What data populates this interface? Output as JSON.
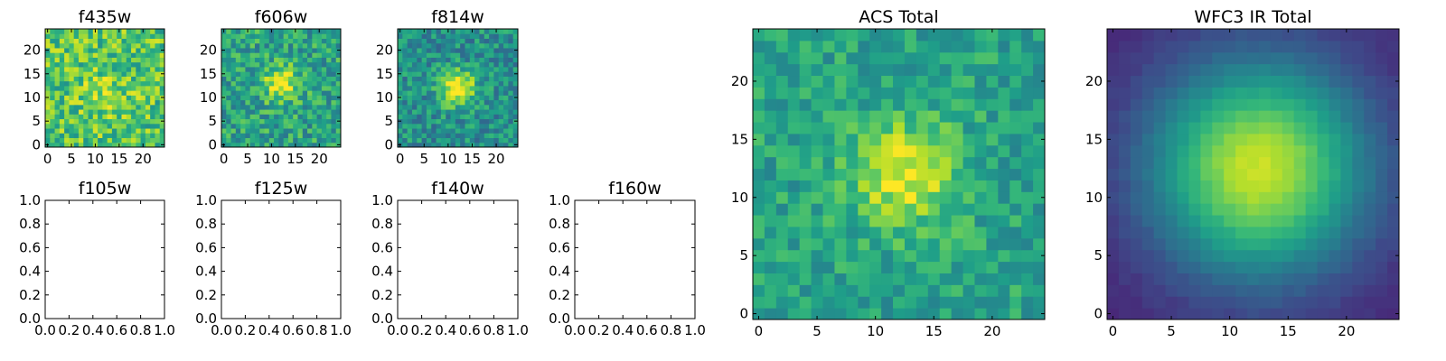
{
  "chart_data": [
    {
      "type": "heatmap",
      "title": "f435w",
      "xticks": [
        0,
        5,
        10,
        15,
        20
      ],
      "yticks": [
        0,
        5,
        10,
        15,
        20
      ],
      "xlim": [
        -0.5,
        24.5
      ],
      "ylim": [
        -0.5,
        24.5
      ],
      "grid_size": 25,
      "colormap": "viridis",
      "image": {
        "center": [
          12,
          11
        ],
        "sigma": 3.5,
        "peak": 0.12,
        "background": 0.72,
        "noise": 0.22,
        "seed": 11
      }
    },
    {
      "type": "heatmap",
      "title": "f606w",
      "xticks": [
        0,
        5,
        10,
        15,
        20
      ],
      "yticks": [
        0,
        5,
        10,
        15,
        20
      ],
      "xlim": [
        -0.5,
        24.5
      ],
      "ylim": [
        -0.5,
        24.5
      ],
      "grid_size": 25,
      "colormap": "viridis",
      "image": {
        "center": [
          12,
          13
        ],
        "sigma": 2.5,
        "peak": 0.42,
        "background": 0.58,
        "noise": 0.2,
        "seed": 23
      }
    },
    {
      "type": "heatmap",
      "title": "f814w",
      "xticks": [
        0,
        5,
        10,
        15,
        20
      ],
      "yticks": [
        0,
        5,
        10,
        15,
        20
      ],
      "xlim": [
        -0.5,
        24.5
      ],
      "ylim": [
        -0.5,
        24.5
      ],
      "grid_size": 25,
      "colormap": "viridis",
      "image": {
        "center": [
          12,
          12
        ],
        "sigma": 2.6,
        "peak": 0.55,
        "background": 0.5,
        "noise": 0.18,
        "seed": 37
      }
    },
    {
      "type": "scatter",
      "title": "f105w",
      "series": [],
      "xlim": [
        0,
        1
      ],
      "ylim": [
        0,
        1
      ],
      "xticks": [
        "0.0",
        "0.2",
        "0.4",
        "0.6",
        "0.8",
        "1.0"
      ],
      "yticks": [
        "0.0",
        "0.2",
        "0.4",
        "0.6",
        "0.8",
        "1.0"
      ]
    },
    {
      "type": "scatter",
      "title": "f125w",
      "series": [],
      "xlim": [
        0,
        1
      ],
      "ylim": [
        0,
        1
      ],
      "xticks": [
        "0.0",
        "0.2",
        "0.4",
        "0.6",
        "0.8",
        "1.0"
      ],
      "yticks": [
        "0.0",
        "0.2",
        "0.4",
        "0.6",
        "0.8",
        "1.0"
      ]
    },
    {
      "type": "scatter",
      "title": "f140w",
      "series": [],
      "xlim": [
        0,
        1
      ],
      "ylim": [
        0,
        1
      ],
      "xticks": [
        "0.0",
        "0.2",
        "0.4",
        "0.6",
        "0.8",
        "1.0"
      ],
      "yticks": [
        "0.0",
        "0.2",
        "0.4",
        "0.6",
        "0.8",
        "1.0"
      ]
    },
    {
      "type": "scatter",
      "title": "f160w",
      "series": [],
      "xlim": [
        0,
        1
      ],
      "ylim": [
        0,
        1
      ],
      "xticks": [
        "0.0",
        "0.2",
        "0.4",
        "0.6",
        "0.8",
        "1.0"
      ],
      "yticks": [
        "0.0",
        "0.2",
        "0.4",
        "0.6",
        "0.8",
        "1.0"
      ]
    },
    {
      "type": "heatmap",
      "title": "ACS Total",
      "xticks": [
        0,
        5,
        10,
        15,
        20
      ],
      "yticks": [
        0,
        5,
        10,
        15,
        20
      ],
      "xlim": [
        -0.5,
        24.5
      ],
      "ylim": [
        -0.5,
        24.5
      ],
      "grid_size": 25,
      "colormap": "viridis",
      "image": {
        "center": [
          12.5,
          12
        ],
        "sigma": 3.2,
        "peak": 0.38,
        "background": 0.58,
        "noise": 0.14,
        "seed": 53
      }
    },
    {
      "type": "heatmap",
      "title": "WFC3 IR Total",
      "xticks": [
        0,
        5,
        10,
        15,
        20
      ],
      "yticks": [
        0,
        5,
        10,
        15,
        20
      ],
      "xlim": [
        -0.5,
        24.5
      ],
      "ylim": [
        -0.5,
        24.5
      ],
      "grid_size": 25,
      "colormap": "viridis",
      "image": {
        "center": [
          12.5,
          12.5
        ],
        "sigma": 6.5,
        "peak": 0.82,
        "background": 0.1,
        "noise": 0.02,
        "seed": 71
      }
    }
  ]
}
